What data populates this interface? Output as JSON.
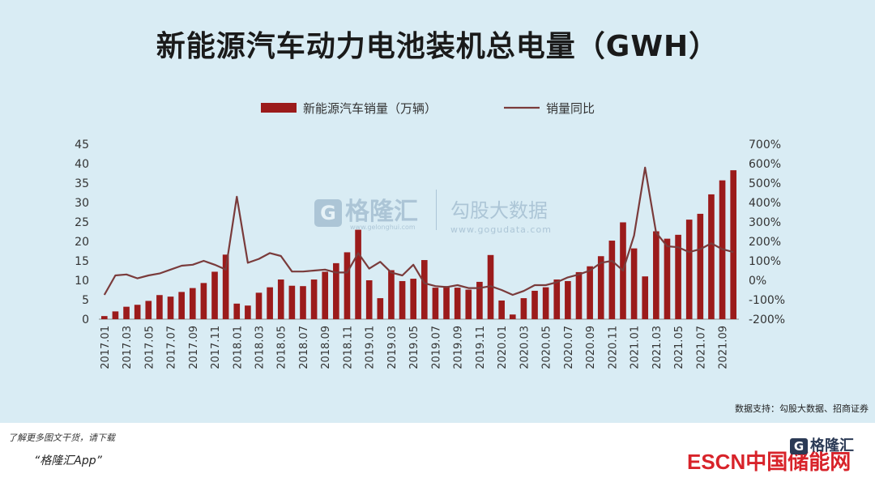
{
  "title": "新能源汽车动力电池装机总电量（GWH）",
  "source": "数据支持：勾股大数据、招商证券",
  "footer": {
    "line1": "了解更多图文干货，请下载",
    "line2": "“格隆汇App”",
    "brand_red": "ESCN中国储能网",
    "brand_logo": "格隆汇"
  },
  "watermark": {
    "left_name": "格隆汇",
    "left_url": "www.gelonghui.com",
    "right_name": "勾股大数据",
    "right_url": "www.gogudata.com"
  },
  "chart_data": {
    "type": "bar",
    "legend": [
      "新能源汽车销量（万辆）",
      "销量同比"
    ],
    "legend_position": "top-center",
    "categories": [
      "2017.01",
      "2017.02",
      "2017.03",
      "2017.04",
      "2017.05",
      "2017.06",
      "2017.07",
      "2017.08",
      "2017.09",
      "2017.10",
      "2017.11",
      "2017.12",
      "2018.01",
      "2018.02",
      "2018.03",
      "2018.04",
      "2018.05",
      "2018.06",
      "2018.07",
      "2018.08",
      "2018.09",
      "2018.10",
      "2018.11",
      "2018.12",
      "2019.01",
      "2019.02",
      "2019.03",
      "2019.04",
      "2019.05",
      "2019.06",
      "2019.07",
      "2019.08",
      "2019.09",
      "2019.10",
      "2019.11",
      "2019.12",
      "2020.01",
      "2020.02",
      "2020.03",
      "2020.04",
      "2020.05",
      "2020.06",
      "2020.07",
      "2020.08",
      "2020.09",
      "2020.10",
      "2020.11",
      "2020.12",
      "2021.01",
      "2021.02",
      "2021.03",
      "2021.04",
      "2021.05",
      "2021.06",
      "2021.07",
      "2021.08",
      "2021.09",
      "2021.10"
    ],
    "tick_labels": [
      "2017.01",
      "2017.03",
      "2017.05",
      "2017.07",
      "2017.09",
      "2017.11",
      "2018.01",
      "2018.03",
      "2018.05",
      "2018.07",
      "2018.09",
      "2018.11",
      "2019.01",
      "2019.03",
      "2019.05",
      "2019.07",
      "2019.09",
      "2019.11",
      "2020.01",
      "2020.03",
      "2020.05",
      "2020.07",
      "2020.09",
      "2020.11",
      "2021.01",
      "2021.03",
      "2021.05",
      "2021.07",
      "2021.09"
    ],
    "series": [
      {
        "name": "新能源汽车销量（万辆）",
        "axis": "left",
        "color": "#9b1b1b",
        "values": [
          0.8,
          2,
          3.2,
          3.7,
          4.7,
          6.2,
          5.8,
          7,
          8,
          9.3,
          12.2,
          16.6,
          4,
          3.5,
          6.8,
          8.2,
          10.2,
          8.6,
          8.5,
          10.2,
          12.2,
          14.4,
          17.2,
          23,
          10,
          5.4,
          12.6,
          9.8,
          10.4,
          15.2,
          8.1,
          8.5,
          8.1,
          7.6,
          9.6,
          16.5,
          4.8,
          1.2,
          5.4,
          7.3,
          8.2,
          10.2,
          9.8,
          12.1,
          13.6,
          16.2,
          20.2,
          24.9,
          18.2,
          11,
          22.6,
          20.7,
          21.7,
          25.6,
          27.1,
          32.1,
          35.7,
          38.3
        ]
      },
      {
        "name": "销量同比",
        "axis": "right",
        "type": "line",
        "color": "#7a3b3b",
        "values": [
          -75,
          25,
          30,
          10,
          25,
          35,
          55,
          75,
          80,
          100,
          80,
          55,
          430,
          90,
          110,
          140,
          125,
          45,
          45,
          50,
          55,
          40,
          40,
          140,
          60,
          95,
          40,
          25,
          80,
          -15,
          -30,
          -35,
          -25,
          -40,
          -40,
          -30,
          -50,
          -75,
          -55,
          -25,
          -25,
          -10,
          15,
          30,
          50,
          90,
          100,
          50,
          230,
          580,
          245,
          175,
          170,
          145,
          160,
          190,
          160,
          145
        ]
      }
    ],
    "ylim_left": [
      0,
      45
    ],
    "yticks_left": [
      "0",
      "5",
      "10",
      "15",
      "20",
      "25",
      "30",
      "35",
      "40",
      "45"
    ],
    "ylim_right": [
      -200,
      700
    ],
    "yticks_right": [
      "-200%",
      "-100%",
      "0%",
      "100%",
      "200%",
      "300%",
      "400%",
      "500%",
      "600%",
      "700%"
    ],
    "grid": false
  }
}
